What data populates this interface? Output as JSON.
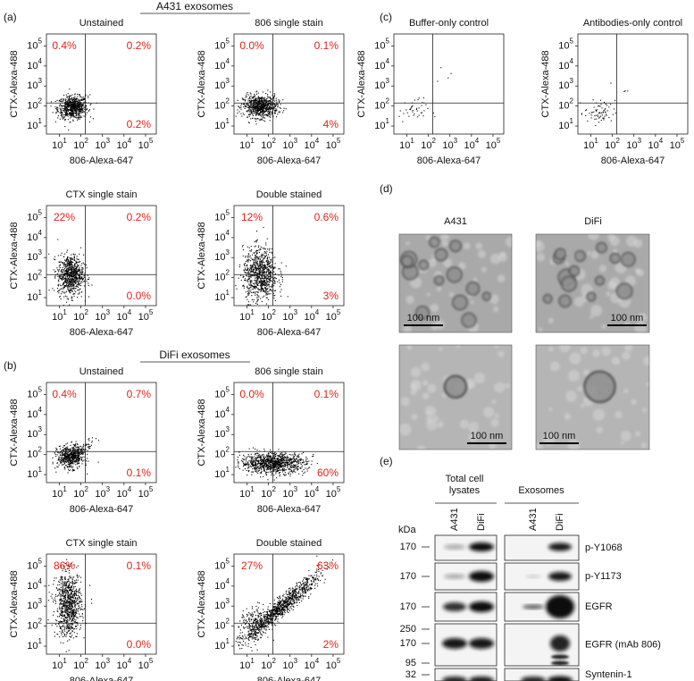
{
  "axes": {
    "x_label": "806-Alexa-647",
    "y_label": "CTX-Alexa-488",
    "tick_base": "10",
    "tick_exps": [
      "1",
      "2",
      "3",
      "4",
      "5"
    ]
  },
  "panels": {
    "a": {
      "label": "(a)",
      "header": "A431 exosomes",
      "plots": [
        {
          "title": "Unstained",
          "quadrants": [
            "0.4%",
            "0.2%",
            "0.2%"
          ]
        },
        {
          "title": "806 single stain",
          "quadrants": [
            "0.0%",
            "0.1%",
            "4%"
          ]
        },
        {
          "title": "CTX single stain",
          "quadrants": [
            "22%",
            "0.2%",
            "0.0%"
          ]
        },
        {
          "title": "Double stained",
          "quadrants": [
            "12%",
            "0.6%",
            "3%"
          ]
        }
      ]
    },
    "b": {
      "label": "(b)",
      "header": "DiFi exosomes",
      "plots": [
        {
          "title": "Unstained",
          "quadrants": [
            "0.4%",
            "0.7%",
            "0.1%"
          ]
        },
        {
          "title": "806 single stain",
          "quadrants": [
            "0.0%",
            "0.1%",
            "60%"
          ]
        },
        {
          "title": "CTX single stain",
          "quadrants": [
            "86%",
            "0.1%",
            "0.0%"
          ]
        },
        {
          "title": "Double stained",
          "quadrants": [
            "27%",
            "63%",
            "2%"
          ]
        }
      ]
    },
    "c": {
      "label": "(c)",
      "plots": [
        {
          "title": "Buffer-only control"
        },
        {
          "title": "Antibodies-only control"
        }
      ]
    },
    "d": {
      "label": "(d)",
      "columns": [
        "A431",
        "DiFi"
      ],
      "scale_bar": "100 nm"
    },
    "e": {
      "label": "(e)",
      "kda": "kDa",
      "groups": [
        {
          "label_lines": [
            "Total cell",
            "lysates"
          ]
        },
        {
          "label_lines": [
            "Exosomes"
          ]
        }
      ],
      "lanes": [
        "A431",
        "DiFi",
        "A431",
        "DiFi"
      ],
      "rows": [
        {
          "name": "p-Y1068",
          "markers": [
            "170"
          ]
        },
        {
          "name": "p-Y1173",
          "markers": [
            "170"
          ]
        },
        {
          "name": "EGFR",
          "markers": [
            "170"
          ]
        },
        {
          "name": "EGFR (mAb 806)",
          "markers": [
            "250",
            "170",
            "95"
          ]
        },
        {
          "name": "Syntenin-1",
          "markers": [
            "32"
          ]
        }
      ]
    }
  }
}
